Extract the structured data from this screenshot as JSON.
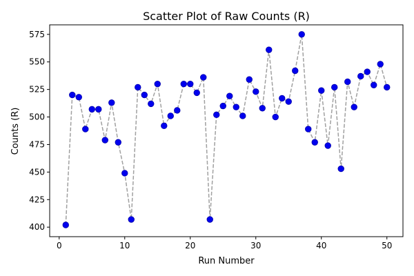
{
  "chart_data": {
    "type": "scatter",
    "title": "Scatter Plot of Raw Counts (R)",
    "xlabel": "Run Number",
    "ylabel": "Counts (R)",
    "xlim": [
      -1.45,
      52.45
    ],
    "ylim": [
      391.35,
      583.65
    ],
    "x_ticks": [
      0,
      10,
      20,
      30,
      40,
      50
    ],
    "y_ticks": [
      400,
      425,
      450,
      475,
      500,
      525,
      550,
      575
    ],
    "grid": false,
    "legend": "none",
    "marker_color": "#0000ee",
    "line_color": "#a0a0a0",
    "line_style": "dashed",
    "series": [
      {
        "x": [
          1,
          2,
          3,
          4,
          5,
          6,
          7,
          8,
          9,
          10,
          11,
          12,
          13,
          14,
          15,
          16,
          17,
          18,
          19,
          20,
          21,
          22,
          23,
          24,
          25,
          26,
          27,
          28,
          29,
          30,
          31,
          32,
          33,
          34,
          35,
          36,
          37,
          38,
          39,
          40,
          41,
          42,
          43,
          44,
          45,
          46,
          47,
          48,
          49,
          50
        ],
        "values": [
          402,
          520,
          518,
          489,
          507,
          507,
          479,
          513,
          477,
          449,
          407,
          527,
          520,
          512,
          530,
          492,
          501,
          506,
          530,
          530,
          522,
          536,
          407,
          502,
          510,
          519,
          509,
          501,
          534,
          523,
          508,
          561,
          500,
          517,
          514,
          542,
          575,
          489,
          477,
          524,
          474,
          527,
          453,
          532,
          509,
          537,
          541,
          529,
          548,
          527
        ]
      }
    ]
  }
}
